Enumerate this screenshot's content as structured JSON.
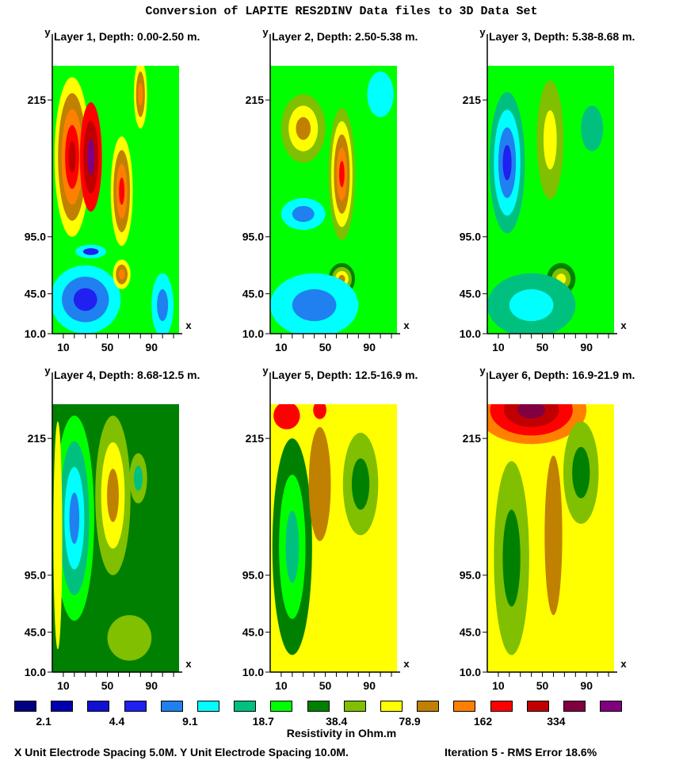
{
  "title": "Conversion of LAPITE RES2DINV Data files to 3D Data Set",
  "legend": {
    "title": "Resistivity in Ohm.m",
    "colors": [
      "#000080",
      "#0000b0",
      "#1010d0",
      "#2020f0",
      "#2080f0",
      "#00ffff",
      "#00c080",
      "#00ff00",
      "#008000",
      "#80c000",
      "#ffff00",
      "#c08000",
      "#ff8000",
      "#ff0000",
      "#c00000",
      "#800040",
      "#800080"
    ],
    "labels": [
      {
        "text": "2.1",
        "slot": 0.5
      },
      {
        "text": "4.4",
        "slot": 2.5
      },
      {
        "text": "9.1",
        "slot": 4.5
      },
      {
        "text": "18.7",
        "slot": 6.5
      },
      {
        "text": "38.4",
        "slot": 8.5
      },
      {
        "text": "78.9",
        "slot": 10.5
      },
      {
        "text": "162",
        "slot": 12.5
      },
      {
        "text": "334",
        "slot": 14.5
      }
    ]
  },
  "footer": {
    "x_spacing": "X Unit Electrode Spacing 5.0M.  Y Unit Electrode Spacing 10.0M.",
    "iteration": "Iteration 5 - RMS Error 18.6%"
  },
  "chart_data": {
    "type": "heatmap",
    "xlabel": "x",
    "ylabel": "y",
    "x_ticks": [
      "10",
      "50",
      "90"
    ],
    "y_ticks": [
      "10.0",
      "45.0",
      "95.0",
      "215"
    ],
    "xlim": [
      0,
      115
    ],
    "ylim": [
      10,
      245
    ],
    "colorbar_levels_ohm_m": [
      2.1,
      4.4,
      9.1,
      18.7,
      38.4,
      78.9,
      162,
      334
    ],
    "layers": [
      {
        "title": "Layer 1, Depth: 0.00-2.50 m.",
        "background_level": 7,
        "blobs": [
          {
            "x": 18,
            "y": 165,
            "rx": 16,
            "ry": 70,
            "levels": [
              10,
              11,
              12,
              13,
              14
            ]
          },
          {
            "x": 35,
            "y": 165,
            "rx": 10,
            "ry": 48,
            "levels": [
              13,
              14,
              16
            ]
          },
          {
            "x": 63,
            "y": 135,
            "rx": 10,
            "ry": 48,
            "levels": [
              10,
              11,
              12,
              13
            ]
          },
          {
            "x": 80,
            "y": 220,
            "rx": 6,
            "ry": 30,
            "levels": [
              10,
              11,
              12
            ]
          },
          {
            "x": 30,
            "y": 40,
            "rx": 32,
            "ry": 30,
            "levels": [
              5,
              4,
              3
            ]
          },
          {
            "x": 63,
            "y": 62,
            "rx": 8,
            "ry": 13,
            "levels": [
              10,
              11,
              12
            ]
          },
          {
            "x": 35,
            "y": 82,
            "rx": 14,
            "ry": 6,
            "levels": [
              5,
              3
            ]
          },
          {
            "x": 100,
            "y": 35,
            "rx": 10,
            "ry": 28,
            "levels": [
              5,
              4
            ]
          }
        ]
      },
      {
        "title": "Layer 2, Depth: 2.50-5.38 m.",
        "background_level": 7,
        "blobs": [
          {
            "x": 65,
            "y": 150,
            "rx": 12,
            "ry": 58,
            "levels": [
              9,
              10,
              11,
              12,
              13
            ]
          },
          {
            "x": 30,
            "y": 190,
            "rx": 20,
            "ry": 30,
            "levels": [
              9,
              10,
              11
            ]
          },
          {
            "x": 65,
            "y": 58,
            "rx": 12,
            "ry": 14,
            "levels": [
              8,
              9,
              10,
              11
            ]
          },
          {
            "x": 30,
            "y": 115,
            "rx": 20,
            "ry": 14,
            "levels": [
              5,
              4
            ]
          },
          {
            "x": 40,
            "y": 35,
            "rx": 40,
            "ry": 28,
            "levels": [
              5,
              4
            ]
          },
          {
            "x": 100,
            "y": 220,
            "rx": 12,
            "ry": 20,
            "levels": [
              5
            ]
          }
        ]
      },
      {
        "title": "Layer 3, Depth: 5.38-8.68 m.",
        "background_level": 7,
        "blobs": [
          {
            "x": 18,
            "y": 160,
            "rx": 16,
            "ry": 62,
            "levels": [
              6,
              5,
              4,
              3
            ]
          },
          {
            "x": 57,
            "y": 180,
            "rx": 12,
            "ry": 52,
            "levels": [
              9,
              10
            ]
          },
          {
            "x": 67,
            "y": 58,
            "rx": 13,
            "ry": 14,
            "levels": [
              8,
              9,
              10
            ]
          },
          {
            "x": 40,
            "y": 35,
            "rx": 40,
            "ry": 28,
            "levels": [
              6,
              5
            ]
          },
          {
            "x": 95,
            "y": 190,
            "rx": 10,
            "ry": 20,
            "levels": [
              6
            ]
          }
        ]
      },
      {
        "title": "Layer 4, Depth: 8.68-12.5 m.",
        "background_level": 8,
        "blobs": [
          {
            "x": 20,
            "y": 145,
            "rx": 18,
            "ry": 90,
            "levels": [
              7,
              6,
              5,
              4
            ]
          },
          {
            "x": 55,
            "y": 165,
            "rx": 16,
            "ry": 70,
            "levels": [
              9,
              10,
              11
            ]
          },
          {
            "x": 78,
            "y": 180,
            "rx": 8,
            "ry": 22,
            "levels": [
              9,
              6
            ]
          },
          {
            "x": 70,
            "y": 40,
            "rx": 20,
            "ry": 20,
            "levels": [
              9
            ]
          },
          {
            "x": 5,
            "y": 130,
            "rx": 4,
            "ry": 100,
            "levels": [
              10
            ]
          }
        ]
      },
      {
        "title": "Layer 5, Depth: 12.5-16.9 m.",
        "background_level": 10,
        "blobs": [
          {
            "x": 20,
            "y": 120,
            "rx": 18,
            "ry": 95,
            "levels": [
              8,
              7,
              6
            ]
          },
          {
            "x": 82,
            "y": 175,
            "rx": 16,
            "ry": 45,
            "levels": [
              9,
              8
            ]
          },
          {
            "x": 45,
            "y": 175,
            "rx": 10,
            "ry": 50,
            "levels": [
              11
            ]
          },
          {
            "x": 15,
            "y": 235,
            "rx": 12,
            "ry": 12,
            "levels": [
              13
            ]
          },
          {
            "x": 45,
            "y": 240,
            "rx": 6,
            "ry": 8,
            "levels": [
              13
            ]
          }
        ]
      },
      {
        "title": "Layer 6, Depth: 16.9-21.9 m.",
        "background_level": 10,
        "blobs": [
          {
            "x": 40,
            "y": 240,
            "rx": 50,
            "ry": 30,
            "levels": [
              12,
              13,
              14,
              15
            ]
          },
          {
            "x": 22,
            "y": 110,
            "rx": 16,
            "ry": 85,
            "levels": [
              9,
              8
            ]
          },
          {
            "x": 85,
            "y": 185,
            "rx": 16,
            "ry": 45,
            "levels": [
              9,
              8
            ]
          },
          {
            "x": 60,
            "y": 130,
            "rx": 8,
            "ry": 70,
            "levels": [
              11
            ]
          }
        ]
      }
    ]
  }
}
